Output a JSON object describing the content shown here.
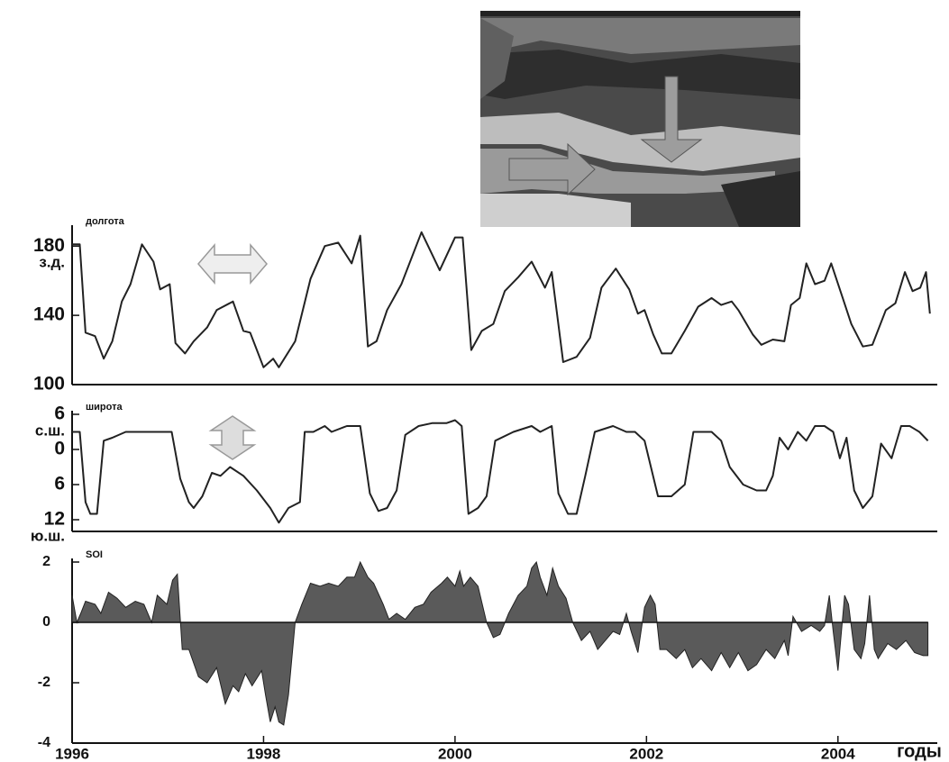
{
  "chart_data": [
    {
      "type": "line",
      "y_label": "долгота",
      "tick_notes": [
        "з.д."
      ],
      "color": "#222222",
      "xlim": [
        1996,
        2005
      ],
      "ylim": [
        100,
        190
      ],
      "yticks": [
        100,
        140,
        180
      ],
      "x": [
        1996.0,
        1996.08,
        1996.14,
        1996.24,
        1996.33,
        1996.42,
        1996.52,
        1996.61,
        1996.73,
        1996.85,
        1996.92,
        1997.02,
        1997.08,
        1997.18,
        1997.27,
        1997.41,
        1997.51,
        1997.68,
        1997.79,
        1997.86,
        1998.0,
        1998.1,
        1998.16,
        1998.33,
        1998.49,
        1998.64,
        1998.78,
        1998.92,
        1999.01,
        1999.09,
        1999.18,
        1999.29,
        1999.44,
        1999.65,
        1999.84,
        2000.0,
        2000.08,
        2000.17,
        2000.28,
        2000.4,
        2000.52,
        2000.66,
        2000.8,
        2000.94,
        2001.01,
        2001.13,
        2001.27,
        2001.41,
        2001.53,
        2001.68,
        2001.82,
        2001.91,
        2001.98,
        2002.07,
        2002.16,
        2002.26,
        2002.4,
        2002.54,
        2002.68,
        2002.78,
        2002.89,
        2002.96,
        2003.11,
        2003.2,
        2003.32,
        2003.44,
        2003.51,
        2003.6,
        2003.67,
        2003.76,
        2003.86,
        2003.93,
        2004.05,
        2004.14,
        2004.26,
        2004.36,
        2004.5,
        2004.6,
        2004.7,
        2004.78,
        2004.86,
        2004.92,
        2004.96
      ],
      "values": [
        181,
        181,
        130,
        128,
        115,
        125,
        148,
        158,
        181,
        171,
        155,
        158,
        124,
        118,
        125,
        133,
        143,
        148,
        131,
        130,
        110,
        115,
        110,
        125,
        161,
        180,
        182,
        170,
        186,
        122,
        125,
        143,
        158,
        188,
        166,
        185,
        185,
        120,
        131,
        135,
        154,
        162,
        171,
        156,
        165,
        113,
        116,
        127,
        156,
        167,
        155,
        141,
        143,
        129,
        118,
        118,
        131,
        145,
        150,
        146,
        148,
        143,
        129,
        123,
        126,
        125,
        146,
        150,
        170,
        158,
        160,
        170,
        150,
        135,
        122,
        123,
        143,
        147,
        165,
        154,
        156,
        165,
        141
      ]
    },
    {
      "type": "line",
      "y_label": "широта",
      "tick_notes": [
        "с.ш.",
        "ю.ш."
      ],
      "color": "#222222",
      "xlim": [
        1996,
        2005
      ],
      "ylim": [
        -14,
        6
      ],
      "yticks": [
        6,
        0,
        {
          "value": -6,
          "label": "6"
        },
        {
          "value": -12,
          "label": "12"
        }
      ],
      "x": [
        1996.0,
        1996.08,
        1996.14,
        1996.19,
        1996.26,
        1996.33,
        1996.42,
        1996.56,
        1996.71,
        1996.8,
        1996.89,
        1996.99,
        1997.04,
        1997.13,
        1997.22,
        1997.27,
        1997.36,
        1997.46,
        1997.55,
        1997.65,
        1997.79,
        1997.93,
        1998.07,
        1998.16,
        1998.26,
        1998.38,
        1998.43,
        1998.52,
        1998.64,
        1998.71,
        1998.87,
        1999.01,
        1999.11,
        1999.2,
        1999.29,
        1999.39,
        1999.48,
        1999.62,
        1999.76,
        1999.91,
        2000.0,
        2000.07,
        2000.14,
        2000.24,
        2000.33,
        2000.42,
        2000.61,
        2000.8,
        2000.89,
        2001.01,
        2001.08,
        2001.18,
        2001.27,
        2001.36,
        2001.46,
        2001.65,
        2001.79,
        2001.88,
        2001.98,
        2002.12,
        2002.26,
        2002.4,
        2002.49,
        2002.68,
        2002.78,
        2002.87,
        2003.01,
        2003.15,
        2003.25,
        2003.32,
        2003.39,
        2003.48,
        2003.58,
        2003.67,
        2003.76,
        2003.86,
        2003.95,
        2004.02,
        2004.09,
        2004.17,
        2004.26,
        2004.36,
        2004.45,
        2004.56,
        2004.66,
        2004.75,
        2004.85,
        2004.94
      ],
      "values": [
        3,
        3,
        -9,
        -11,
        -11,
        1.5,
        2,
        3,
        3,
        3,
        3,
        3,
        3,
        -5,
        -9,
        -10,
        -8,
        -4,
        -4.5,
        -3,
        -4.5,
        -7,
        -10,
        -12.5,
        -10,
        -9,
        3,
        3,
        4,
        3,
        4,
        4,
        -7.5,
        -10.5,
        -10,
        -7,
        2.5,
        4,
        4.5,
        4.5,
        5,
        4,
        -11,
        -10,
        -8,
        1.5,
        3,
        4,
        3,
        4,
        -7.5,
        -11,
        -11,
        -4.5,
        3,
        4,
        3,
        3,
        1.5,
        -8,
        -8,
        -6,
        3,
        3,
        1.5,
        -3,
        -6,
        -7,
        -7,
        -4.5,
        2,
        0,
        3,
        1.5,
        4,
        4,
        3,
        -1.5,
        2,
        -7,
        -10,
        -8,
        1,
        -1.5,
        4,
        4,
        3,
        1.5
      ]
    },
    {
      "type": "area",
      "y_label": "SOI",
      "x_label": "годы",
      "color": "#5a5a5a",
      "xlim": [
        1996,
        2005
      ],
      "ylim": [
        -4,
        2
      ],
      "yticks": [
        -4,
        -2,
        0,
        2
      ],
      "xticks": [
        1996,
        1998,
        2000,
        2002,
        2004
      ],
      "x": [
        1996.0,
        1996.05,
        1996.09,
        1996.14,
        1996.24,
        1996.3,
        1996.38,
        1996.47,
        1996.56,
        1996.66,
        1996.75,
        1996.83,
        1996.89,
        1996.99,
        1997.05,
        1997.1,
        1997.15,
        1997.22,
        1997.32,
        1997.41,
        1997.51,
        1997.6,
        1997.68,
        1997.74,
        1997.81,
        1997.88,
        1997.98,
        1998.02,
        1998.07,
        1998.12,
        1998.16,
        1998.21,
        1998.26,
        1998.33,
        1998.4,
        1998.49,
        1998.59,
        1998.68,
        1998.78,
        1998.87,
        1998.95,
        1999.01,
        1999.09,
        1999.15,
        1999.25,
        1999.31,
        1999.39,
        1999.48,
        1999.58,
        1999.67,
        1999.75,
        1999.86,
        1999.92,
        2000.0,
        2000.05,
        2000.09,
        2000.16,
        2000.24,
        2000.33,
        2000.4,
        2000.47,
        2000.56,
        2000.66,
        2000.75,
        2000.8,
        2000.85,
        2000.89,
        2000.96,
        2001.02,
        2001.08,
        2001.16,
        2001.23,
        2001.32,
        2001.41,
        2001.49,
        2001.57,
        2001.65,
        2001.72,
        2001.79,
        2001.84,
        2001.91,
        2001.98,
        2002.04,
        2002.09,
        2002.14,
        2002.21,
        2002.31,
        2002.4,
        2002.48,
        2002.57,
        2002.68,
        2002.78,
        2002.87,
        2002.96,
        2003.06,
        2003.15,
        2003.25,
        2003.34,
        2003.44,
        2003.48,
        2003.53,
        2003.62,
        2003.72,
        2003.81,
        2003.86,
        2003.91,
        2003.95,
        2004.0,
        2004.07,
        2004.11,
        2004.17,
        2004.24,
        2004.28,
        2004.33,
        2004.38,
        2004.42,
        2004.52,
        2004.61,
        2004.71,
        2004.8,
        2004.89,
        2004.94
      ],
      "values": [
        0.9,
        0,
        0.3,
        0.7,
        0.6,
        0.3,
        1.0,
        0.8,
        0.5,
        0.7,
        0.6,
        0,
        0.9,
        0.6,
        1.4,
        1.6,
        -0.9,
        -0.9,
        -1.8,
        -2.0,
        -1.5,
        -2.7,
        -2.1,
        -2.3,
        -1.7,
        -2.1,
        -1.6,
        -2.4,
        -3.3,
        -2.8,
        -3.3,
        -3.4,
        -2.4,
        0,
        0.6,
        1.3,
        1.2,
        1.3,
        1.2,
        1.5,
        1.5,
        2.0,
        1.5,
        1.3,
        0.6,
        0.1,
        0.3,
        0.1,
        0.5,
        0.6,
        1.0,
        1.3,
        1.5,
        1.2,
        1.7,
        1.2,
        1.5,
        1.2,
        0,
        -0.5,
        -0.4,
        0.3,
        0.9,
        1.2,
        1.8,
        2.0,
        1.5,
        0.9,
        1.8,
        1.2,
        0.8,
        0,
        -0.6,
        -0.3,
        -0.9,
        -0.6,
        -0.3,
        -0.4,
        0.3,
        -0.3,
        -1.0,
        0.5,
        0.9,
        0.6,
        -0.9,
        -0.9,
        -1.2,
        -0.9,
        -1.5,
        -1.2,
        -1.6,
        -1.0,
        -1.5,
        -1.0,
        -1.6,
        -1.4,
        -0.9,
        -1.2,
        -0.6,
        -1.1,
        0.2,
        -0.3,
        -0.1,
        -0.3,
        -0.1,
        0.9,
        -0.3,
        -1.6,
        0.9,
        0.6,
        -0.9,
        -1.2,
        -0.7,
        0.9,
        -0.9,
        -1.2,
        -0.7,
        -0.9,
        -0.6,
        -1.0,
        -1.1,
        -1.1
      ]
    }
  ]
}
